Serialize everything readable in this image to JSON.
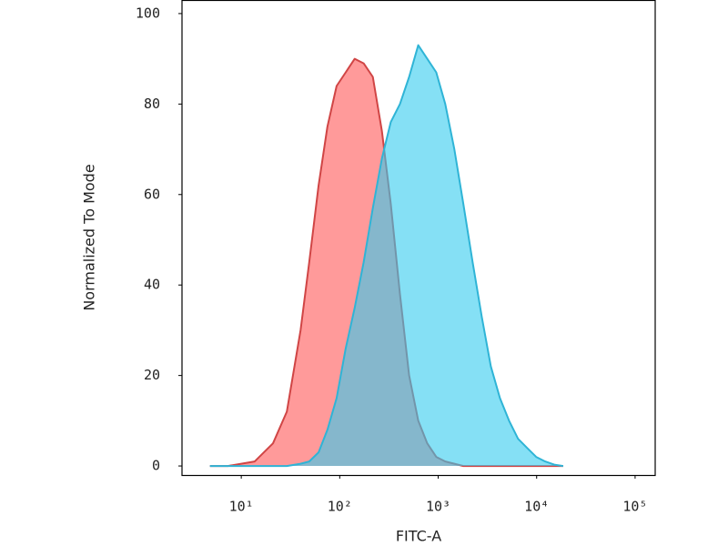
{
  "chart_data": {
    "type": "area",
    "x_label": "FITC-A",
    "y_label": "Normalized To Mode",
    "xscale": "log",
    "xlim": [
      2.5,
      160000
    ],
    "xticks": [
      {
        "value": 10,
        "label": "10¹"
      },
      {
        "value": 100,
        "label": "10²"
      },
      {
        "value": 1000,
        "label": "10³"
      },
      {
        "value": 10000,
        "label": "10⁴"
      },
      {
        "value": 100000,
        "label": "10⁵"
      }
    ],
    "ylim": [
      -2,
      103
    ],
    "yticks": [
      0,
      20,
      40,
      60,
      80,
      100
    ],
    "x": [
      4.8,
      7.3,
      13.7,
      21,
      29,
      40,
      49,
      61,
      75,
      93,
      115,
      142,
      175,
      217,
      268,
      330,
      409,
      507,
      627,
      774,
      955,
      1180,
      1460,
      1800,
      2240,
      2770,
      3430,
      4240,
      5240,
      6470,
      8000,
      9880,
      12200,
      15100,
      18600
    ],
    "series": [
      {
        "color": "#ff9a9a",
        "line_color": "#d04545",
        "values": [
          0,
          0,
          1,
          5,
          12,
          30,
          45,
          62,
          75,
          84,
          87,
          90,
          89,
          86,
          74,
          58,
          38,
          20,
          10,
          5,
          2,
          1,
          0.5,
          0,
          0,
          0,
          0,
          0,
          0,
          0,
          0,
          0,
          0,
          0,
          0
        ]
      },
      {
        "color": "#33ccee",
        "line_color": "#2fb4d6",
        "values": [
          0,
          0,
          0,
          0,
          0,
          0.5,
          1,
          3,
          8,
          15,
          26,
          35,
          45,
          57,
          68,
          76,
          80,
          86,
          93,
          90,
          87,
          80,
          70,
          58,
          45,
          33,
          22,
          15,
          10,
          6,
          4,
          2,
          1,
          0.3,
          0
        ]
      }
    ]
  }
}
